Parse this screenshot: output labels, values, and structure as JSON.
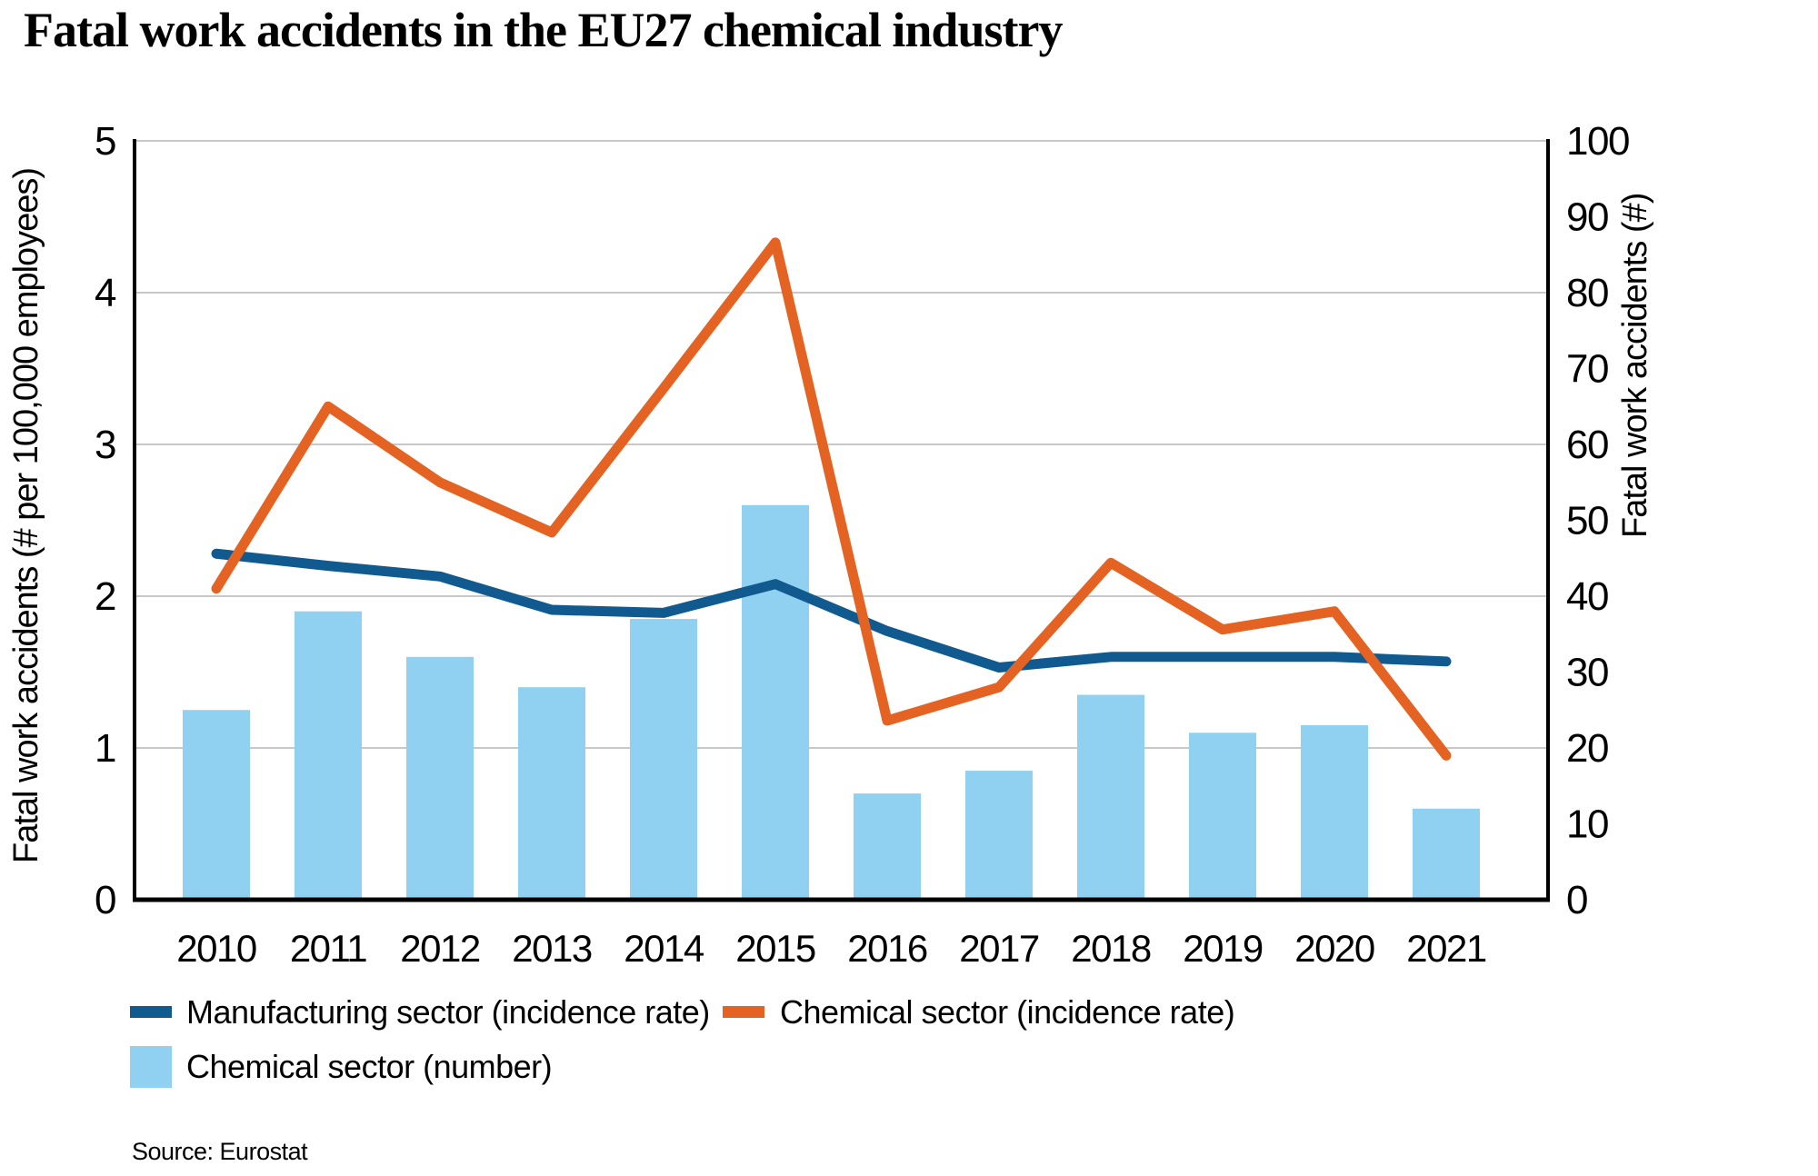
{
  "title": "Fatal work accidents in the EU27 chemical industry",
  "source_note": "Source: Eurostat",
  "colors": {
    "manufacturing_line": "#105A8F",
    "chemical_line": "#E56322",
    "chemical_bars": "#90D1F1",
    "gridline": "#C8C8C8",
    "axis": "#000000"
  },
  "legend": {
    "manufacturing_label": "Manufacturing sector (incidence rate)",
    "chemical_rate_label": "Chemical sector (incidence rate)",
    "chemical_number_label": "Chemical sector (number)"
  },
  "chart_data": {
    "type": "bar",
    "subtype": "combo bar + two lines, dual axis",
    "categories": [
      "2010",
      "2011",
      "2012",
      "2013",
      "2014",
      "2015",
      "2016",
      "2017",
      "2018",
      "2019",
      "2020",
      "2021"
    ],
    "bar_series": {
      "name": "Chemical sector (number)",
      "axis": "right",
      "values": [
        25,
        38,
        32,
        28,
        37,
        52,
        14,
        17,
        27,
        22,
        23,
        12
      ]
    },
    "series": [
      {
        "name": "Manufacturing sector (incidence rate)",
        "type": "line",
        "axis": "left",
        "values": [
          2.28,
          2.2,
          2.13,
          1.91,
          1.89,
          2.08,
          1.77,
          1.53,
          1.6,
          1.6,
          1.6,
          1.57
        ]
      },
      {
        "name": "Chemical sector (incidence rate)",
        "type": "line",
        "axis": "left",
        "values": [
          2.05,
          3.25,
          2.75,
          2.42,
          3.37,
          4.33,
          1.18,
          1.4,
          2.22,
          1.78,
          1.9,
          0.95
        ]
      }
    ],
    "left_axis": {
      "label": "Fatal work accidents (# per 100,000 employees)",
      "min": 0,
      "max": 5,
      "step": 1,
      "tick_labels": [
        "0",
        "1",
        "2",
        "3",
        "4",
        "5"
      ]
    },
    "right_axis": {
      "label": "Fatal work accidents (#)",
      "min": 0,
      "max": 100,
      "step": 10,
      "tick_labels": [
        "0",
        "10",
        "20",
        "30",
        "40",
        "50",
        "60",
        "70",
        "80",
        "90",
        "100"
      ]
    },
    "grid": "horizontal gridlines at each left-axis step, top border gridline",
    "legend_position": "bottom-left, two rows"
  }
}
